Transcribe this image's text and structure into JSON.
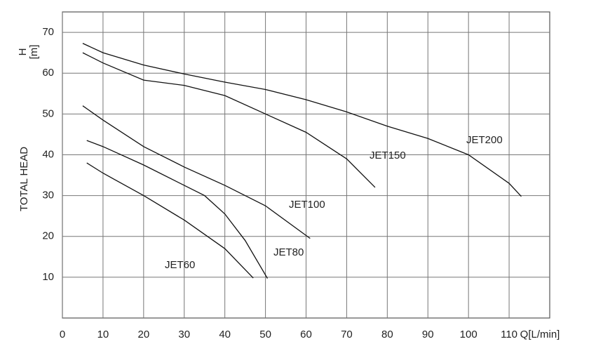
{
  "chart_data": {
    "type": "line",
    "y_label": "TOTAL HEAD",
    "y_symbol": "H",
    "y_unit": "[m]",
    "x_label": "Q[L/min]",
    "xlim": [
      0,
      120
    ],
    "xticks": [
      0,
      10,
      20,
      30,
      40,
      50,
      60,
      70,
      80,
      90,
      100,
      110
    ],
    "ylim": [
      0,
      75
    ],
    "yticks": [
      10,
      20,
      30,
      40,
      50,
      60,
      70
    ],
    "grid": true,
    "series": [
      {
        "name": "JET200",
        "color": "#111111",
        "x": [
          5,
          10,
          20,
          30,
          40,
          50,
          60,
          70,
          80,
          90,
          100,
          110,
          113
        ],
        "values": [
          67.3,
          65,
          62,
          59.8,
          57.8,
          56,
          53.5,
          50.5,
          47,
          44,
          40,
          33,
          29.8
        ]
      },
      {
        "name": "JET150",
        "color": "#111111",
        "x": [
          5,
          10,
          20,
          30,
          40,
          50,
          60,
          70,
          77
        ],
        "values": [
          65,
          62.5,
          58.3,
          57,
          54.5,
          50,
          45.5,
          39,
          32
        ]
      },
      {
        "name": "JET100",
        "color": "#111111",
        "x": [
          5,
          10,
          20,
          30,
          40,
          50,
          61
        ],
        "values": [
          52,
          48.5,
          42,
          37,
          32.5,
          27.5,
          19.5
        ]
      },
      {
        "name": "JET80",
        "color": "#111111",
        "x": [
          6,
          10,
          20,
          30,
          35,
          40,
          45,
          50.5
        ],
        "values": [
          43.5,
          42,
          37.5,
          32.5,
          30,
          25.5,
          19,
          9.7
        ]
      },
      {
        "name": "JET60",
        "color": "#111111",
        "x": [
          6,
          10,
          20,
          30,
          40,
          47
        ],
        "values": [
          38,
          35.5,
          30,
          24,
          17,
          9.8
        ]
      }
    ]
  }
}
